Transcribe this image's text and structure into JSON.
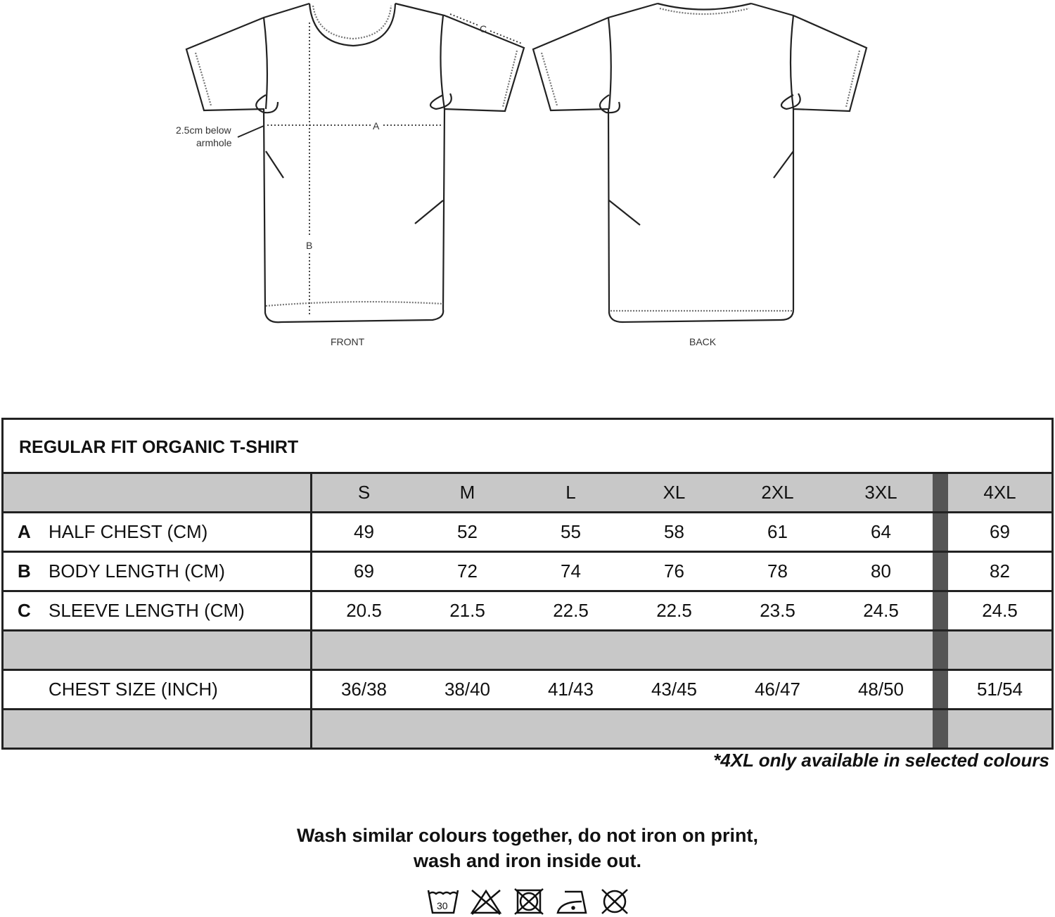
{
  "drawing": {
    "front_label": "FRONT",
    "back_label": "BACK",
    "measure_a": "A",
    "measure_b": "B",
    "measure_c": "C",
    "note_line1": "2.5cm below",
    "note_line2": "armhole"
  },
  "table": {
    "title": "REGULAR FIT ORGANIC T-SHIRT",
    "sizes": [
      "S",
      "M",
      "L",
      "XL",
      "2XL",
      "3XL",
      "4XL"
    ],
    "rows": [
      {
        "letter": "A",
        "label": "HALF CHEST (CM)",
        "values": [
          "49",
          "52",
          "55",
          "58",
          "61",
          "64",
          "69"
        ]
      },
      {
        "letter": "B",
        "label": "BODY LENGTH (CM)",
        "values": [
          "69",
          "72",
          "74",
          "76",
          "78",
          "80",
          "82"
        ]
      },
      {
        "letter": "C",
        "label": "SLEEVE LENGTH (CM)",
        "values": [
          "20.5",
          "21.5",
          "22.5",
          "22.5",
          "23.5",
          "24.5",
          "24.5"
        ]
      }
    ],
    "chest_row": {
      "label": "CHEST SIZE (INCH)",
      "values": [
        "36/38",
        "38/40",
        "41/43",
        "43/45",
        "46/47",
        "48/50",
        "51/54"
      ]
    },
    "header_bg": "#c8c8c8",
    "separator_color": "#555555"
  },
  "footnote": "*4XL only available in selected colours",
  "care": {
    "line1": "Wash similar colours together, do not iron on print,",
    "line2": "wash and iron inside out.",
    "icons": [
      "wash-30-icon",
      "no-bleach-icon",
      "no-tumble-dry-icon",
      "iron-low-icon",
      "no-dry-clean-icon"
    ],
    "wash_temp": "30"
  }
}
